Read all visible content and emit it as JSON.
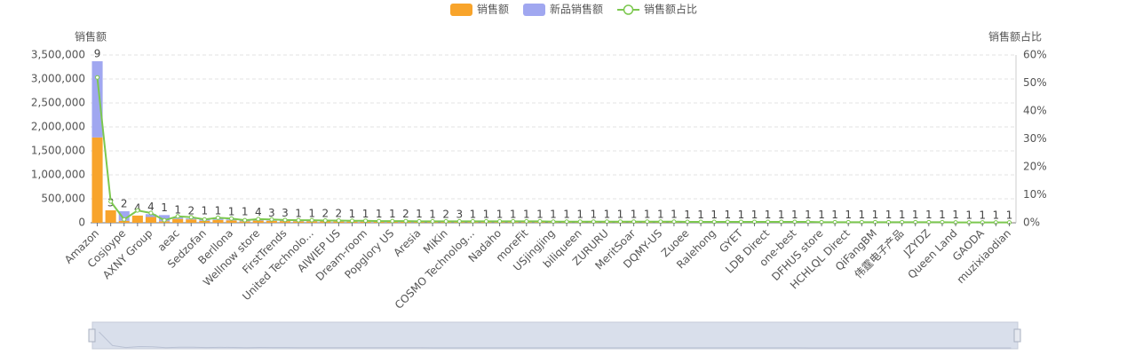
{
  "chart_data": {
    "type": "bar",
    "y_axis_label": "销售额",
    "y2_axis_label": "销售额占比",
    "categories": [
      "Amazon",
      null,
      "Cosjoype",
      null,
      "AXNY Group",
      null,
      "aeac",
      null,
      "Sedzofan",
      null,
      "Berllona",
      null,
      "Wellnow store",
      null,
      "FirstTrends",
      null,
      "United Technolo...",
      null,
      "AIWIEP US",
      null,
      "Dream-room",
      null,
      "Popglory US",
      null,
      "Aresia",
      null,
      "MiKin",
      null,
      "COSMO Technolog...",
      null,
      "Nadaho",
      null,
      "moreFit",
      null,
      "USjingjing",
      null,
      "biliqueen",
      null,
      "ZURURU",
      null,
      "MeritSoar",
      null,
      "DQMY-US",
      null,
      "Zuoee",
      null,
      "Ralehong",
      null,
      "GYET",
      null,
      "LDB Direct",
      null,
      "one-best",
      null,
      "DFHUS store",
      null,
      "HCHLQL Direct",
      null,
      "QiFangBM",
      null,
      "伟霆电子产品",
      null,
      "JZYDZ",
      null,
      "Queen Land",
      null,
      "GAODA",
      null,
      "muzixiaodian"
    ],
    "series": [
      {
        "name": "销售额",
        "color": "#f8a42b",
        "stack": "a",
        "values": [
          1780000,
          260000,
          40000,
          150000,
          120000,
          30000,
          80000,
          70000,
          40000,
          60000,
          50000,
          30000,
          45000,
          40000,
          35000,
          30000,
          30000,
          28000,
          26000,
          25000,
          24000,
          22000,
          21000,
          20000,
          19000,
          18000,
          18000,
          17000,
          16000,
          16000,
          15000,
          15000,
          14000,
          14000,
          13000,
          13000,
          12000,
          12000,
          12000,
          11000,
          11000,
          10000,
          10000,
          10000,
          9000,
          9000,
          9000,
          8000,
          8000,
          8000,
          7000,
          7000,
          7000,
          6000,
          6000,
          6000,
          6000,
          5000,
          5000,
          5000,
          5000,
          4000,
          4000,
          4000,
          4000,
          3000,
          3000,
          3000,
          3000
        ]
      },
      {
        "name": "新品销售额",
        "color": "#a0a7f0",
        "stack": "a",
        "values": [
          1590000,
          0,
          200000,
          0,
          60000,
          130000,
          30000,
          20000,
          50000,
          30000,
          20000,
          40000,
          20000,
          10000,
          15000,
          10000,
          8000,
          8000,
          10000,
          7000,
          6000,
          6000,
          6000,
          5000,
          5000,
          5000,
          5000,
          5000,
          5000,
          5000,
          5000,
          5000,
          5000,
          5000,
          4000,
          4000,
          4000,
          4000,
          4000,
          4000,
          4000,
          4000,
          4000,
          4000,
          3000,
          3000,
          3000,
          3000,
          3000,
          3000,
          3000,
          3000,
          3000,
          3000,
          2000,
          2000,
          2000,
          2000,
          2000,
          2000,
          2000,
          2000,
          2000,
          2000,
          1000,
          1000,
          1000,
          1000,
          1000
        ]
      },
      {
        "name": "销售额占比",
        "color": "#7cc84f",
        "type": "line",
        "axis": "y2",
        "values": [
          52,
          7.6,
          1.2,
          4.4,
          3.5,
          0.9,
          2.3,
          2.0,
          1.2,
          1.8,
          1.5,
          0.9,
          1.3,
          1.2,
          1.0,
          0.9,
          0.9,
          0.8,
          0.8,
          0.7,
          0.7,
          0.6,
          0.6,
          0.6,
          0.5,
          0.5,
          0.5,
          0.5,
          0.5,
          0.5,
          0.5,
          0.5,
          0.5,
          0.5,
          0.4,
          0.4,
          0.4,
          0.4,
          0.4,
          0.4,
          0.4,
          0.4,
          0.4,
          0.4,
          0.3,
          0.3,
          0.3,
          0.3,
          0.3,
          0.3,
          0.3,
          0.3,
          0.3,
          0.3,
          0.2,
          0.2,
          0.2,
          0.2,
          0.2,
          0.2,
          0.2,
          0.2,
          0.2,
          0.2,
          0.1,
          0.1,
          0.1,
          0.1,
          0.1
        ]
      }
    ],
    "counts": [
      9,
      3,
      2,
      4,
      4,
      1,
      1,
      2,
      1,
      1,
      1,
      1,
      4,
      3,
      3,
      1,
      1,
      2,
      2,
      1,
      1,
      1,
      1,
      2,
      1,
      1,
      2,
      3,
      1,
      1,
      1,
      1,
      1,
      1,
      1,
      1,
      1,
      1,
      1,
      1,
      1,
      1,
      1,
      1,
      1,
      1,
      1,
      1,
      1,
      1,
      1,
      1,
      1,
      1,
      1,
      1,
      1,
      1,
      1,
      1,
      1,
      1,
      1,
      1,
      1,
      1,
      1,
      1,
      1
    ],
    "ylim": [
      0,
      3500000
    ],
    "yticks": [
      0,
      {
        "value": 500000,
        "label": "500,000"
      },
      {
        "value": 1000000,
        "label": "1,000,000"
      },
      {
        "value": 1500000,
        "label": "1,500,000"
      },
      {
        "value": 2000000,
        "label": "2,000,000"
      },
      {
        "value": 2500000,
        "label": "2,500,000"
      },
      {
        "value": 3000000,
        "label": "3,000,000"
      },
      {
        "value": 3500000,
        "label": "3,500,000"
      }
    ],
    "y2lim": [
      0,
      60
    ],
    "y2ticks": [
      {
        "value": 0,
        "label": "0%"
      },
      {
        "value": 10,
        "label": "10%"
      },
      {
        "value": 20,
        "label": "20%"
      },
      {
        "value": 30,
        "label": "30%"
      },
      {
        "value": 40,
        "label": "40%"
      },
      {
        "value": 50,
        "label": "50%"
      },
      {
        "value": 60,
        "label": "60%"
      }
    ],
    "grid": true,
    "legend": "top"
  }
}
